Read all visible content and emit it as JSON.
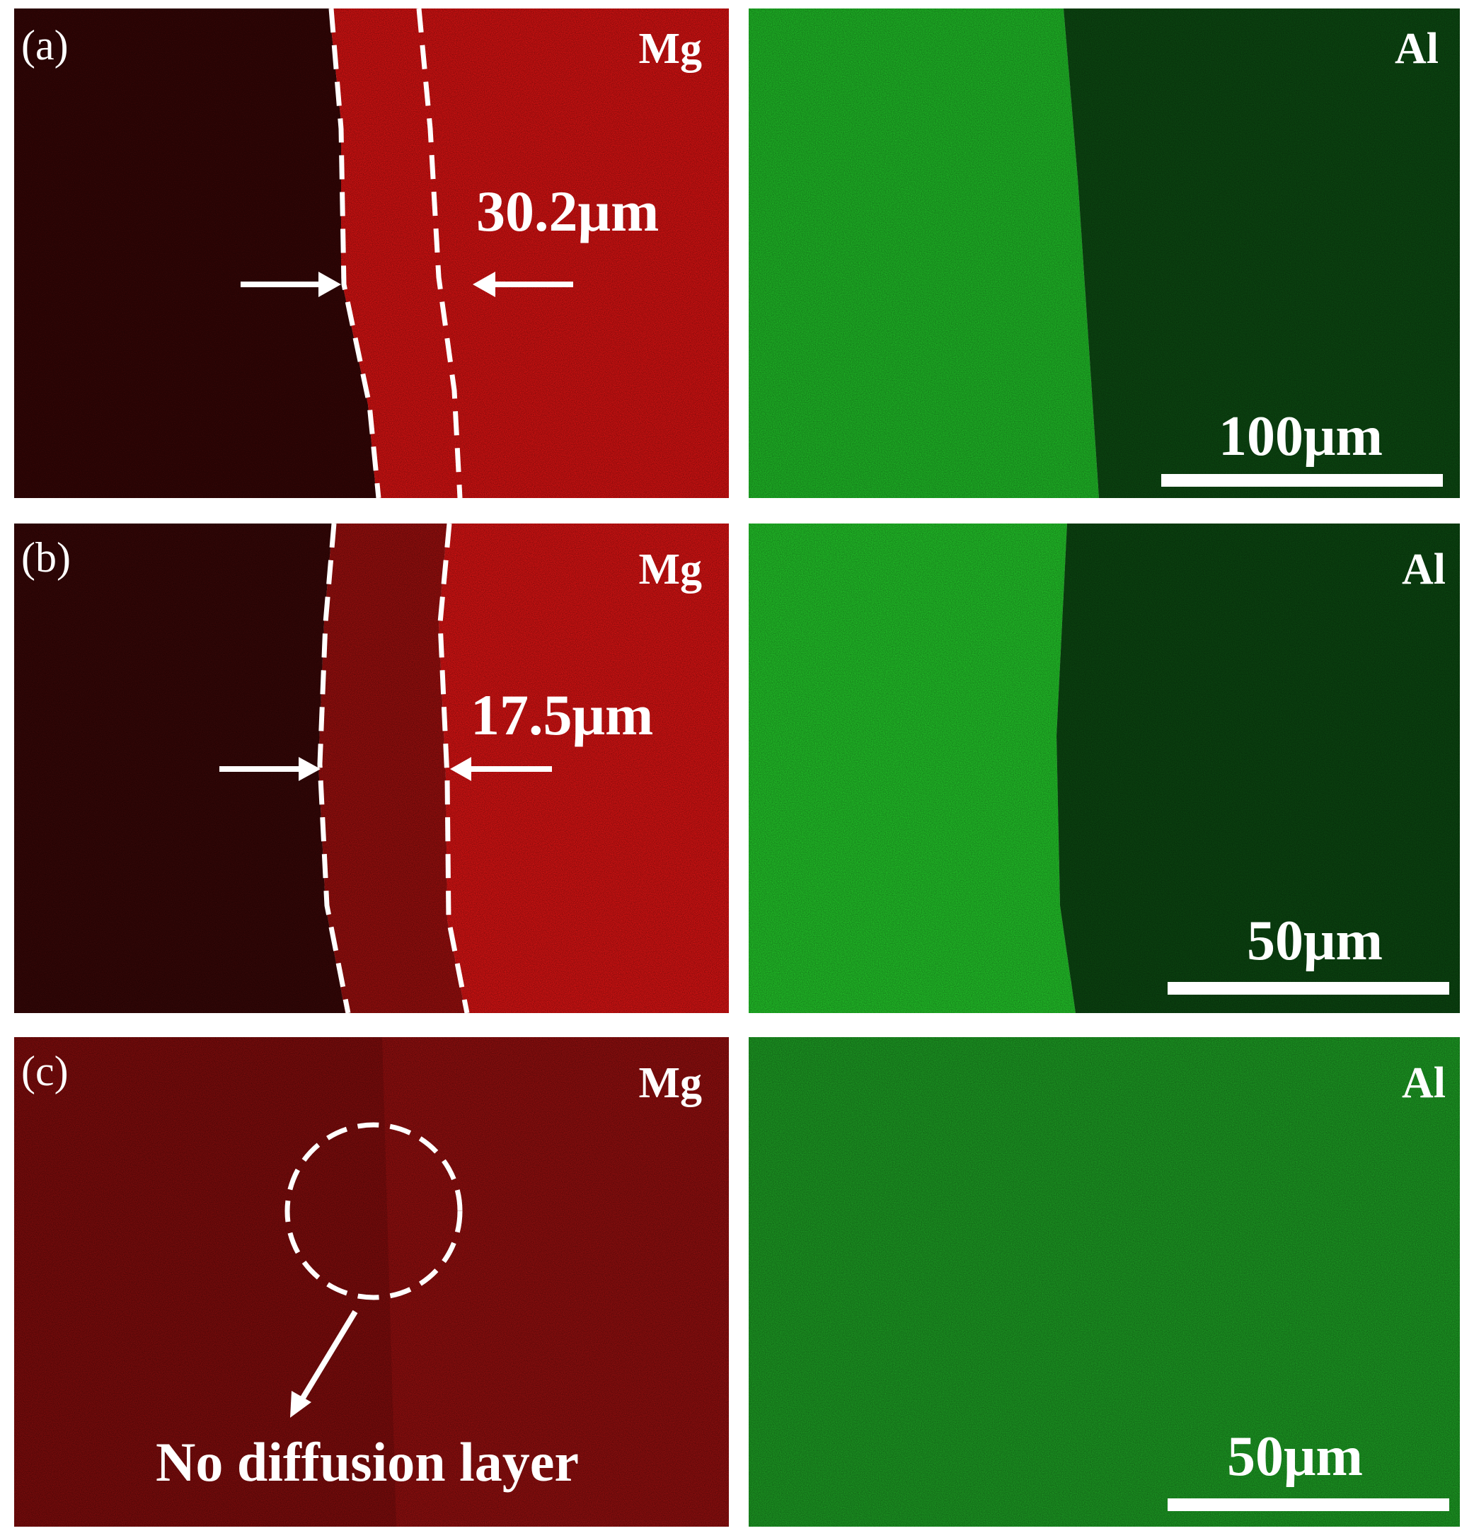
{
  "panels": {
    "a": {
      "letter": "(a)",
      "mg_label": "Mg",
      "al_label": "Al",
      "width_label": "30.2μm",
      "scale_label": "100μm"
    },
    "b": {
      "letter": "(b)",
      "mg_label": "Mg",
      "al_label": "Al",
      "width_label": "17.5μm",
      "scale_label": "50μm"
    },
    "c": {
      "letter": "(c)",
      "mg_label": "Mg",
      "al_label": "Al",
      "note_label": "No diffusion layer",
      "scale_label": "50μm"
    }
  },
  "colors": {
    "mg_dark": "#3a0606",
    "mg_bright": "#f21414",
    "mg_mid": "#9e1010",
    "al_bright": "#22d42a",
    "al_dark": "#0c5212",
    "al_mid": "#1fa527",
    "annotation": "#ffffff",
    "background": "#ffffff"
  }
}
